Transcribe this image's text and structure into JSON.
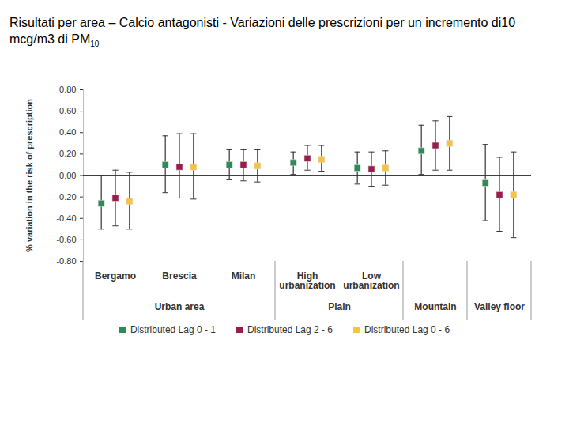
{
  "chart_data": {
    "type": "scatter",
    "title": "Risultati per area – Calcio antagonisti - Variazioni delle prescrizioni per un incremento di10 mcg/m3 di PM",
    "title_subscript": "10",
    "y_label": "% variation in the risk of prescription",
    "categories": [
      "Bergamo",
      "Brescia",
      "Milan",
      "High urbanization",
      "Low urbanization",
      null,
      null
    ],
    "group_of": [
      "Urban area",
      "Urban area",
      "Urban area",
      "Plain",
      "Plain",
      "Mountain",
      "Valley floor"
    ],
    "marker": "square",
    "grid": false,
    "legend": "bottom",
    "series": [
      {
        "name": "Distributed Lag 0 - 1",
        "color": "#2e8b57",
        "values": [
          -0.26,
          0.1,
          0.1,
          0.12,
          0.07,
          0.23,
          -0.07
        ],
        "lower": [
          -0.5,
          -0.16,
          -0.04,
          0.01,
          -0.08,
          0.01,
          -0.42
        ],
        "upper": [
          0.0,
          0.37,
          0.24,
          0.22,
          0.22,
          0.47,
          0.29
        ]
      },
      {
        "name": "Distributed Lag 2 - 6",
        "color": "#9b1b4a",
        "values": [
          -0.21,
          0.08,
          0.1,
          0.16,
          0.06,
          0.28,
          -0.18
        ],
        "lower": [
          -0.47,
          -0.21,
          -0.05,
          0.05,
          -0.1,
          0.05,
          -0.52
        ],
        "upper": [
          0.05,
          0.39,
          0.24,
          0.28,
          0.22,
          0.51,
          0.17
        ]
      },
      {
        "name": "Distributed Lag 0 - 6",
        "color": "#f5c242",
        "values": [
          -0.24,
          0.08,
          0.09,
          0.15,
          0.07,
          0.3,
          -0.18
        ],
        "lower": [
          -0.5,
          -0.22,
          -0.06,
          0.04,
          -0.09,
          0.05,
          -0.58
        ],
        "upper": [
          0.03,
          0.39,
          0.24,
          0.28,
          0.23,
          0.55,
          0.22
        ]
      }
    ],
    "ylim": [
      -0.8,
      0.8
    ],
    "yticks": [
      {
        "value": 0.8,
        "label": "0.80"
      },
      {
        "value": 0.6,
        "label": "0.60"
      },
      {
        "value": 0.4,
        "label": "0.40"
      },
      {
        "value": 0.2,
        "label": "0.20"
      },
      {
        "value": 0,
        "label": "0.00"
      },
      {
        "value": -0.2,
        "label": "-0.20"
      },
      {
        "value": -0.4,
        "label": "-0.40"
      },
      {
        "value": -0.6,
        "label": "-0.60"
      },
      {
        "value": -0.8,
        "label": "-0.80"
      }
    ]
  }
}
